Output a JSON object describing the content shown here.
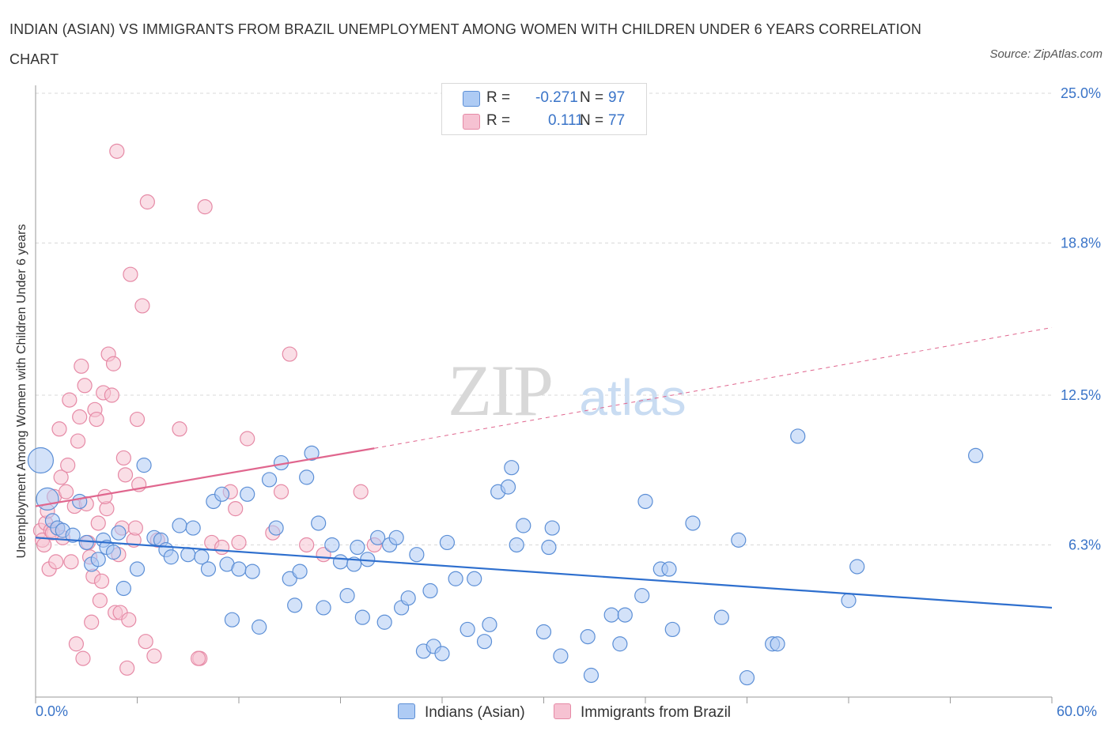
{
  "title": "INDIAN (ASIAN) VS IMMIGRANTS FROM BRAZIL UNEMPLOYMENT AMONG WOMEN WITH CHILDREN UNDER 6 YEARS CORRELATION CHART",
  "source": "Source: ZipAtlas.com",
  "watermark": {
    "zip": "ZIP",
    "atlas": "atlas"
  },
  "legend_top": [
    {
      "r_label": "R =",
      "r_value": "-0.271",
      "n_label": "N =",
      "n_value": "97"
    },
    {
      "r_label": "R =",
      "r_value": "0.111",
      "n_label": "N =",
      "n_value": "77"
    }
  ],
  "legend_bottom": [
    "Indians (Asian)",
    "Immigrants from Brazil"
  ],
  "x_tick_labels": {
    "min": "0.0%",
    "max": "60.0%"
  },
  "colors": {
    "blue_fill": "#aecbf4",
    "blue_stroke": "#5c8fd6",
    "blue_line": "#2e6fce",
    "pink_fill": "#f6c2d2",
    "pink_stroke": "#e68aa6",
    "pink_line": "#e0668e",
    "tick_text": "#3a74c8",
    "grid": "#d9d9d9"
  },
  "chart_data": {
    "type": "scatter",
    "title": "INDIAN (ASIAN) VS IMMIGRANTS FROM BRAZIL UNEMPLOYMENT AMONG WOMEN WITH CHILDREN UNDER 6 YEARS CORRELATION CHART",
    "xlabel": "",
    "ylabel": "Unemployment Among Women with Children Under 6 years",
    "xlim": [
      0,
      60
    ],
    "ylim": [
      0,
      25
    ],
    "y_ticks": [
      6.3,
      12.5,
      18.8,
      25.0
    ],
    "y_tick_labels": [
      "6.3%",
      "12.5%",
      "18.8%",
      "25.0%"
    ],
    "grid": "horizontal dashed",
    "legend_placement": "top-center and bottom",
    "series": [
      {
        "name": "Indians (Asian)",
        "trend": {
          "x": [
            0,
            60
          ],
          "y": [
            6.6,
            3.7
          ]
        },
        "points": [
          [
            0.3,
            9.8
          ],
          [
            0.7,
            8.2
          ],
          [
            1,
            7.3
          ],
          [
            1.3,
            7.0
          ],
          [
            1.6,
            6.9
          ],
          [
            2.2,
            6.7
          ],
          [
            2.6,
            8.1
          ],
          [
            3,
            6.4
          ],
          [
            3.3,
            5.5
          ],
          [
            3.7,
            5.7
          ],
          [
            4,
            6.5
          ],
          [
            4.2,
            6.2
          ],
          [
            4.6,
            6.0
          ],
          [
            4.9,
            6.8
          ],
          [
            5.2,
            4.5
          ],
          [
            6,
            5.3
          ],
          [
            6.4,
            9.6
          ],
          [
            7,
            6.6
          ],
          [
            7.4,
            6.5
          ],
          [
            7.7,
            6.1
          ],
          [
            8,
            5.8
          ],
          [
            8.5,
            7.1
          ],
          [
            9,
            5.9
          ],
          [
            9.3,
            7.0
          ],
          [
            9.8,
            5.8
          ],
          [
            10.2,
            5.3
          ],
          [
            10.5,
            8.1
          ],
          [
            11,
            8.4
          ],
          [
            11.3,
            5.5
          ],
          [
            11.6,
            3.2
          ],
          [
            12,
            5.3
          ],
          [
            12.5,
            8.4
          ],
          [
            12.8,
            5.2
          ],
          [
            13.2,
            2.9
          ],
          [
            13.8,
            9.0
          ],
          [
            14.2,
            7.0
          ],
          [
            14.5,
            9.7
          ],
          [
            15,
            4.9
          ],
          [
            15.3,
            3.8
          ],
          [
            15.6,
            5.2
          ],
          [
            16,
            9.1
          ],
          [
            16.3,
            10.1
          ],
          [
            16.7,
            7.2
          ],
          [
            17,
            3.7
          ],
          [
            17.5,
            6.3
          ],
          [
            18,
            5.6
          ],
          [
            18.4,
            4.2
          ],
          [
            19,
            6.2
          ],
          [
            19.3,
            3.3
          ],
          [
            19.6,
            5.7
          ],
          [
            20.2,
            6.6
          ],
          [
            20.6,
            3.1
          ],
          [
            20.9,
            6.3
          ],
          [
            21.3,
            6.6
          ],
          [
            21.6,
            3.7
          ],
          [
            22,
            4.1
          ],
          [
            22.5,
            5.9
          ],
          [
            22.9,
            1.9
          ],
          [
            23.3,
            4.4
          ],
          [
            23.5,
            2.1
          ],
          [
            24,
            1.8
          ],
          [
            24.3,
            6.4
          ],
          [
            24.8,
            4.9
          ],
          [
            25.5,
            2.8
          ],
          [
            25.9,
            4.9
          ],
          [
            26.5,
            2.3
          ],
          [
            26.8,
            3.0
          ],
          [
            27.3,
            8.5
          ],
          [
            27.9,
            8.7
          ],
          [
            28.1,
            9.5
          ],
          [
            28.4,
            6.3
          ],
          [
            28.8,
            7.1
          ],
          [
            30,
            2.7
          ],
          [
            30.3,
            6.2
          ],
          [
            31,
            1.7
          ],
          [
            32.6,
            2.5
          ],
          [
            32.8,
            0.9
          ],
          [
            34,
            3.4
          ],
          [
            34.5,
            2.2
          ],
          [
            34.8,
            3.4
          ],
          [
            35.8,
            4.2
          ],
          [
            36,
            8.1
          ],
          [
            36.9,
            5.3
          ],
          [
            37.4,
            5.3
          ],
          [
            37.6,
            2.8
          ],
          [
            38.8,
            7.2
          ],
          [
            40.5,
            3.3
          ],
          [
            41.5,
            6.5
          ],
          [
            42,
            0.8
          ],
          [
            43.5,
            2.2
          ],
          [
            43.8,
            2.2
          ],
          [
            45,
            10.8
          ],
          [
            48,
            4.0
          ],
          [
            48.5,
            5.4
          ],
          [
            55.5,
            10.0
          ],
          [
            30.5,
            7.0
          ],
          [
            18.8,
            5.5
          ]
        ]
      },
      {
        "name": "Immigrants from Brazil",
        "trend": {
          "x": [
            0,
            20
          ],
          "y": [
            7.9,
            10.3
          ]
        },
        "trend_ext": {
          "x": [
            20,
            60
          ],
          "y": [
            10.3,
            15.3
          ]
        },
        "points": [
          [
            0.3,
            6.9
          ],
          [
            0.4,
            6.5
          ],
          [
            0.5,
            6.3
          ],
          [
            0.6,
            7.2
          ],
          [
            0.8,
            5.3
          ],
          [
            0.9,
            6.9
          ],
          [
            1.1,
            8.3
          ],
          [
            1.2,
            5.6
          ],
          [
            1.3,
            7.0
          ],
          [
            1.4,
            11.1
          ],
          [
            1.5,
            9.1
          ],
          [
            1.6,
            6.6
          ],
          [
            1.8,
            8.5
          ],
          [
            1.9,
            9.6
          ],
          [
            2.0,
            12.3
          ],
          [
            2.1,
            5.6
          ],
          [
            2.3,
            7.9
          ],
          [
            2.4,
            2.2
          ],
          [
            2.5,
            10.6
          ],
          [
            2.6,
            11.6
          ],
          [
            2.7,
            13.7
          ],
          [
            2.8,
            1.6
          ],
          [
            2.9,
            12.9
          ],
          [
            3.0,
            8.0
          ],
          [
            3.1,
            6.4
          ],
          [
            3.2,
            5.8
          ],
          [
            3.3,
            3.1
          ],
          [
            3.4,
            5.0
          ],
          [
            3.5,
            11.9
          ],
          [
            3.6,
            11.5
          ],
          [
            3.7,
            7.2
          ],
          [
            3.8,
            4.0
          ],
          [
            3.9,
            4.8
          ],
          [
            4.0,
            12.6
          ],
          [
            4.2,
            7.8
          ],
          [
            4.3,
            14.2
          ],
          [
            4.5,
            12.5
          ],
          [
            4.6,
            13.8
          ],
          [
            4.7,
            3.5
          ],
          [
            4.8,
            22.6
          ],
          [
            4.9,
            5.9
          ],
          [
            5.0,
            3.5
          ],
          [
            5.1,
            7.0
          ],
          [
            5.2,
            9.9
          ],
          [
            5.3,
            9.2
          ],
          [
            5.4,
            1.2
          ],
          [
            5.5,
            3.2
          ],
          [
            5.6,
            17.5
          ],
          [
            5.8,
            6.5
          ],
          [
            5.9,
            7.0
          ],
          [
            6.0,
            11.5
          ],
          [
            6.1,
            8.8
          ],
          [
            6.3,
            16.2
          ],
          [
            6.5,
            2.3
          ],
          [
            6.6,
            20.5
          ],
          [
            7.0,
            1.7
          ],
          [
            7.2,
            6.5
          ],
          [
            8.5,
            11.1
          ],
          [
            9.7,
            1.6
          ],
          [
            10.0,
            20.3
          ],
          [
            10.4,
            6.4
          ],
          [
            11.0,
            6.2
          ],
          [
            11.5,
            8.5
          ],
          [
            11.8,
            7.8
          ],
          [
            12.0,
            6.4
          ],
          [
            12.5,
            10.7
          ],
          [
            14.0,
            6.8
          ],
          [
            14.5,
            8.5
          ],
          [
            15.0,
            14.2
          ],
          [
            16.0,
            6.3
          ],
          [
            17.0,
            5.9
          ],
          [
            19.2,
            8.5
          ],
          [
            20.0,
            6.3
          ],
          [
            4.1,
            8.3
          ],
          [
            1.0,
            6.8
          ],
          [
            0.7,
            7.7
          ],
          [
            9.6,
            1.6
          ]
        ]
      }
    ]
  }
}
